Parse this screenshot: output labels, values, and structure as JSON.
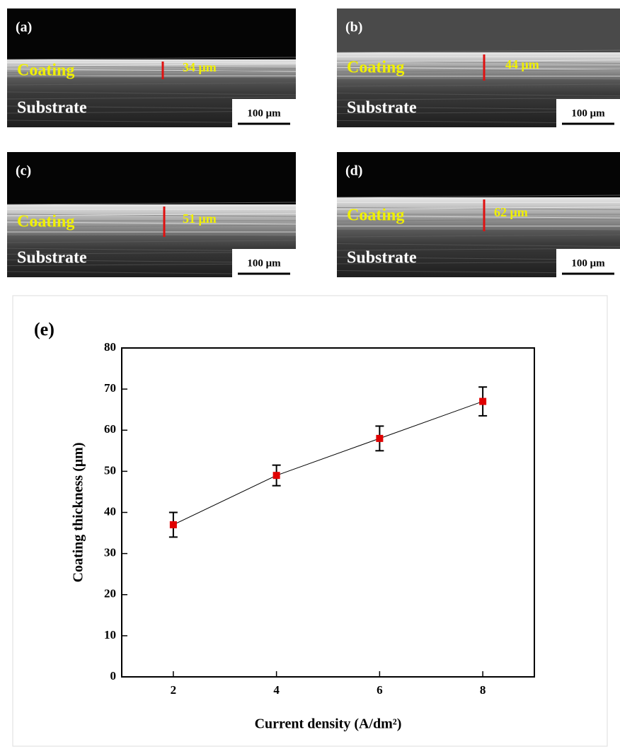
{
  "panels": [
    {
      "label": "(a)",
      "coating": "Coating",
      "thickness": "34 μm",
      "substrate": "Substrate",
      "scale": "100 μm"
    },
    {
      "label": "(b)",
      "coating": "Coating",
      "thickness": "44 μm",
      "substrate": "Substrate",
      "scale": "100 μm"
    },
    {
      "label": "(c)",
      "coating": "Coating",
      "thickness": "51 μm",
      "substrate": "Substrate",
      "scale": "100 μm"
    },
    {
      "label": "(d)",
      "coating": "Coating",
      "thickness": "62 μm",
      "substrate": "Substrate",
      "scale": "100 μm"
    }
  ],
  "chart_data": {
    "type": "line",
    "panel_label": "(e)",
    "x_label": "Current density (A/dm²)",
    "y_label": "Coating thickness (μm)",
    "x": [
      2,
      4,
      6,
      8
    ],
    "values": [
      37,
      49,
      58,
      67
    ],
    "errors": [
      3,
      2.5,
      3,
      3.5
    ],
    "color": "#e00000",
    "line_color": "#000000",
    "xlim": [
      1,
      9
    ],
    "xticks": [
      2,
      4,
      6,
      8
    ],
    "ylim": [
      0,
      80
    ],
    "yticks": [
      0,
      10,
      20,
      30,
      40,
      50,
      60,
      70,
      80
    ]
  }
}
